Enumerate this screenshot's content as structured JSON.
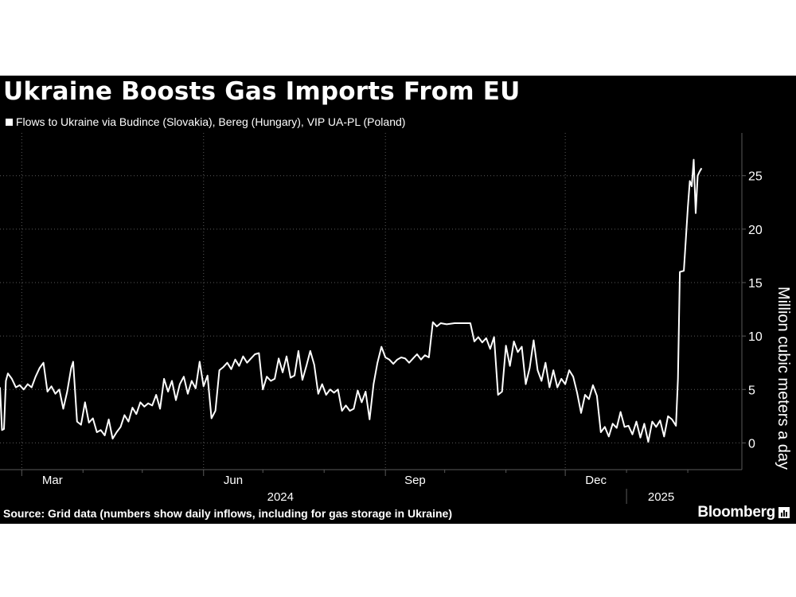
{
  "header": {
    "title": "Ukraine Boosts Gas Imports From EU"
  },
  "footer": {
    "source": "Source: Grid data (numbers show daily inflows, including for gas storage in Ukraine)",
    "brand": "Bloomberg"
  },
  "colors": {
    "background": "#000000",
    "line": "#ffffff",
    "grid": "#5a5a5a",
    "text": "#ffffff"
  },
  "chart_data": {
    "type": "line",
    "title": "Ukraine Boosts Gas Imports From EU",
    "ylabel": "Million cubic meters a day",
    "xlabel": "",
    "ylim": [
      -2.5,
      29
    ],
    "yticks": [
      0,
      5,
      10,
      15,
      20,
      25
    ],
    "y_axis_position": "right",
    "grid": "dotted",
    "x_range": [
      "2024-02-19",
      "2025-02-05"
    ],
    "month_ticks": [
      {
        "date": "2024-03-01",
        "label": "Mar"
      },
      {
        "date": "2024-06-01",
        "label": "Jun"
      },
      {
        "date": "2024-09-01",
        "label": "Sep"
      },
      {
        "date": "2024-12-01",
        "label": "Dec"
      }
    ],
    "year_labels": [
      {
        "label": "2024",
        "from": "2024-02-19",
        "to": "2024-12-31"
      },
      {
        "label": "2025",
        "from": "2025-01-01",
        "to": "2025-02-05"
      }
    ],
    "series": [
      {
        "name": "Flows to Ukraine via Budince (Slovakia), Bereg (Hungary), VIP UA-PL (Poland)",
        "color": "#ffffff",
        "points": [
          [
            "2024-02-19",
            5.2
          ],
          [
            "2024-02-20",
            1.2
          ],
          [
            "2024-02-21",
            1.3
          ],
          [
            "2024-02-22",
            5.8
          ],
          [
            "2024-02-23",
            6.5
          ],
          [
            "2024-02-25",
            6.0
          ],
          [
            "2024-02-27",
            5.2
          ],
          [
            "2024-02-29",
            5.4
          ],
          [
            "2024-03-02",
            5.0
          ],
          [
            "2024-03-04",
            5.5
          ],
          [
            "2024-03-06",
            5.2
          ],
          [
            "2024-03-08",
            6.2
          ],
          [
            "2024-03-10",
            7.0
          ],
          [
            "2024-03-12",
            7.5
          ],
          [
            "2024-03-14",
            4.8
          ],
          [
            "2024-03-16",
            5.3
          ],
          [
            "2024-03-18",
            4.6
          ],
          [
            "2024-03-20",
            5.0
          ],
          [
            "2024-03-22",
            3.2
          ],
          [
            "2024-03-24",
            4.8
          ],
          [
            "2024-03-26",
            7.0
          ],
          [
            "2024-03-27",
            7.6
          ],
          [
            "2024-03-29",
            2.0
          ],
          [
            "2024-03-31",
            1.7
          ],
          [
            "2024-04-02",
            3.8
          ],
          [
            "2024-04-04",
            1.9
          ],
          [
            "2024-04-06",
            2.3
          ],
          [
            "2024-04-08",
            1.0
          ],
          [
            "2024-04-10",
            1.2
          ],
          [
            "2024-04-12",
            0.7
          ],
          [
            "2024-04-14",
            2.2
          ],
          [
            "2024-04-16",
            0.4
          ],
          [
            "2024-04-18",
            1.0
          ],
          [
            "2024-04-20",
            1.5
          ],
          [
            "2024-04-22",
            2.6
          ],
          [
            "2024-04-24",
            2.0
          ],
          [
            "2024-04-26",
            3.3
          ],
          [
            "2024-04-28",
            2.7
          ],
          [
            "2024-04-30",
            3.8
          ],
          [
            "2024-05-02",
            3.4
          ],
          [
            "2024-05-04",
            3.7
          ],
          [
            "2024-05-06",
            3.5
          ],
          [
            "2024-05-08",
            4.5
          ],
          [
            "2024-05-10",
            3.2
          ],
          [
            "2024-05-12",
            6.0
          ],
          [
            "2024-05-14",
            4.8
          ],
          [
            "2024-05-16",
            5.8
          ],
          [
            "2024-05-18",
            4.0
          ],
          [
            "2024-05-20",
            5.5
          ],
          [
            "2024-05-22",
            6.2
          ],
          [
            "2024-05-24",
            4.6
          ],
          [
            "2024-05-26",
            5.8
          ],
          [
            "2024-05-28",
            5.1
          ],
          [
            "2024-05-30",
            7.6
          ],
          [
            "2024-06-01",
            5.3
          ],
          [
            "2024-06-03",
            6.3
          ],
          [
            "2024-06-05",
            2.3
          ],
          [
            "2024-06-07",
            3.0
          ],
          [
            "2024-06-09",
            6.8
          ],
          [
            "2024-06-11",
            7.1
          ],
          [
            "2024-06-13",
            7.5
          ],
          [
            "2024-06-15",
            6.9
          ],
          [
            "2024-06-17",
            7.8
          ],
          [
            "2024-06-19",
            7.2
          ],
          [
            "2024-06-21",
            8.1
          ],
          [
            "2024-06-23",
            7.5
          ],
          [
            "2024-06-25",
            7.9
          ],
          [
            "2024-06-27",
            8.3
          ],
          [
            "2024-06-29",
            8.4
          ],
          [
            "2024-07-01",
            5.0
          ],
          [
            "2024-07-03",
            6.2
          ],
          [
            "2024-07-05",
            5.8
          ],
          [
            "2024-07-07",
            6.0
          ],
          [
            "2024-07-09",
            7.9
          ],
          [
            "2024-07-11",
            6.6
          ],
          [
            "2024-07-13",
            8.1
          ],
          [
            "2024-07-15",
            6.1
          ],
          [
            "2024-07-17",
            6.3
          ],
          [
            "2024-07-19",
            8.6
          ],
          [
            "2024-07-21",
            5.9
          ],
          [
            "2024-07-23",
            7.2
          ],
          [
            "2024-07-25",
            8.6
          ],
          [
            "2024-07-27",
            7.3
          ],
          [
            "2024-07-29",
            4.6
          ],
          [
            "2024-07-31",
            5.5
          ],
          [
            "2024-08-02",
            4.5
          ],
          [
            "2024-08-04",
            5.0
          ],
          [
            "2024-08-06",
            4.7
          ],
          [
            "2024-08-08",
            5.0
          ],
          [
            "2024-08-10",
            3.0
          ],
          [
            "2024-08-12",
            3.5
          ],
          [
            "2024-08-14",
            3.0
          ],
          [
            "2024-08-16",
            3.2
          ],
          [
            "2024-08-18",
            4.9
          ],
          [
            "2024-08-20",
            3.8
          ],
          [
            "2024-08-22",
            4.8
          ],
          [
            "2024-08-24",
            2.2
          ],
          [
            "2024-08-26",
            5.5
          ],
          [
            "2024-08-28",
            7.5
          ],
          [
            "2024-08-30",
            9.0
          ],
          [
            "2024-09-01",
            8.0
          ],
          [
            "2024-09-03",
            7.8
          ],
          [
            "2024-09-05",
            7.4
          ],
          [
            "2024-09-07",
            7.8
          ],
          [
            "2024-09-09",
            8.0
          ],
          [
            "2024-09-11",
            7.9
          ],
          [
            "2024-09-13",
            7.5
          ],
          [
            "2024-09-15",
            7.9
          ],
          [
            "2024-09-17",
            8.3
          ],
          [
            "2024-09-19",
            7.8
          ],
          [
            "2024-09-21",
            8.2
          ],
          [
            "2024-09-23",
            8.0
          ],
          [
            "2024-09-25",
            11.3
          ],
          [
            "2024-09-27",
            10.9
          ],
          [
            "2024-09-29",
            11.2
          ],
          [
            "2024-10-02",
            11.1
          ],
          [
            "2024-10-06",
            11.2
          ],
          [
            "2024-10-10",
            11.2
          ],
          [
            "2024-10-14",
            11.2
          ],
          [
            "2024-10-16",
            9.5
          ],
          [
            "2024-10-18",
            9.9
          ],
          [
            "2024-10-20",
            9.4
          ],
          [
            "2024-10-22",
            9.8
          ],
          [
            "2024-10-24",
            8.8
          ],
          [
            "2024-10-26",
            9.9
          ],
          [
            "2024-10-28",
            4.5
          ],
          [
            "2024-10-30",
            4.8
          ],
          [
            "2024-11-01",
            9.1
          ],
          [
            "2024-11-03",
            7.2
          ],
          [
            "2024-11-05",
            9.5
          ],
          [
            "2024-11-07",
            8.5
          ],
          [
            "2024-11-09",
            9.0
          ],
          [
            "2024-11-11",
            5.5
          ],
          [
            "2024-11-13",
            7.0
          ],
          [
            "2024-11-15",
            9.6
          ],
          [
            "2024-11-17",
            6.8
          ],
          [
            "2024-11-19",
            5.8
          ],
          [
            "2024-11-21",
            7.5
          ],
          [
            "2024-11-23",
            5.2
          ],
          [
            "2024-11-25",
            6.8
          ],
          [
            "2024-11-27",
            5.2
          ],
          [
            "2024-11-29",
            6.0
          ],
          [
            "2024-12-01",
            5.5
          ],
          [
            "2024-12-03",
            6.8
          ],
          [
            "2024-12-05",
            6.2
          ],
          [
            "2024-12-07",
            4.7
          ],
          [
            "2024-12-09",
            2.8
          ],
          [
            "2024-12-11",
            4.5
          ],
          [
            "2024-12-13",
            4.1
          ],
          [
            "2024-12-15",
            5.4
          ],
          [
            "2024-12-17",
            4.4
          ],
          [
            "2024-12-19",
            1.0
          ],
          [
            "2024-12-21",
            1.5
          ],
          [
            "2024-12-23",
            0.6
          ],
          [
            "2024-12-25",
            1.8
          ],
          [
            "2024-12-27",
            1.4
          ],
          [
            "2024-12-29",
            2.9
          ],
          [
            "2024-12-31",
            1.5
          ],
          [
            "2025-01-02",
            1.6
          ],
          [
            "2025-01-04",
            0.8
          ],
          [
            "2025-01-06",
            2.0
          ],
          [
            "2025-01-08",
            0.5
          ],
          [
            "2025-01-10",
            1.8
          ],
          [
            "2025-01-12",
            0.1
          ],
          [
            "2025-01-14",
            2.0
          ],
          [
            "2025-01-16",
            1.5
          ],
          [
            "2025-01-18",
            2.1
          ],
          [
            "2025-01-20",
            0.6
          ],
          [
            "2025-01-22",
            2.5
          ],
          [
            "2025-01-24",
            2.2
          ],
          [
            "2025-01-26",
            1.6
          ],
          [
            "2025-01-27",
            6.0
          ],
          [
            "2025-01-28",
            16.0
          ],
          [
            "2025-01-30",
            16.1
          ],
          [
            "2025-02-01",
            22.0
          ],
          [
            "2025-02-02",
            24.5
          ],
          [
            "2025-02-03",
            24.0
          ],
          [
            "2025-02-04",
            26.5
          ],
          [
            "2025-02-05",
            21.5
          ],
          [
            "2025-02-06",
            25.0
          ],
          [
            "2025-02-07",
            25.4
          ],
          [
            "2025-02-08",
            25.7
          ]
        ]
      }
    ]
  }
}
